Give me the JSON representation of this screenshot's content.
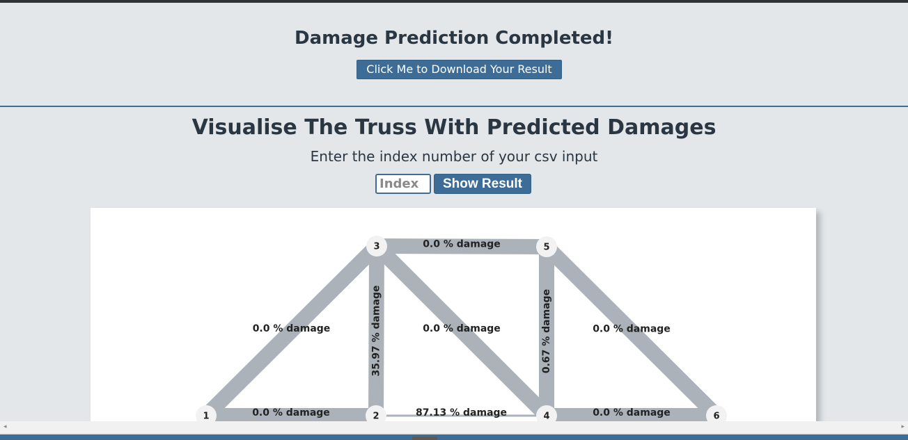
{
  "header": {
    "title": "Damage Prediction Completed!",
    "download_label": "Click Me to Download Your Result"
  },
  "visualise": {
    "title": "Visualise The Truss With Predicted Damages",
    "subtitle": "Enter the index number of your csv input",
    "index_placeholder": "Index",
    "index_value": "",
    "show_label": "Show Result"
  },
  "truss": {
    "nodes": [
      {
        "id": "1",
        "label": "1"
      },
      {
        "id": "2",
        "label": "2"
      },
      {
        "id": "3",
        "label": "3"
      },
      {
        "id": "4",
        "label": "4"
      },
      {
        "id": "5",
        "label": "5"
      },
      {
        "id": "6",
        "label": "6"
      }
    ],
    "members": [
      {
        "from": "3",
        "to": "5",
        "damage_pct": 0.0,
        "label": "0.0 % damage"
      },
      {
        "from": "1",
        "to": "3",
        "damage_pct": 0.0,
        "label": "0.0 % damage"
      },
      {
        "from": "3",
        "to": "2",
        "damage_pct": 35.97,
        "label": "35.97 % damage"
      },
      {
        "from": "3",
        "to": "4",
        "damage_pct": 0.0,
        "label": "0.0 % damage"
      },
      {
        "from": "5",
        "to": "4",
        "damage_pct": 0.67,
        "label": "0.67 % damage"
      },
      {
        "from": "5",
        "to": "6",
        "damage_pct": 0.0,
        "label": "0.0 % damage"
      },
      {
        "from": "1",
        "to": "2",
        "damage_pct": 0.0,
        "label": "0.0 % damage"
      },
      {
        "from": "2",
        "to": "4",
        "damage_pct": 87.13,
        "label": "87.13 % damage"
      },
      {
        "from": "4",
        "to": "6",
        "damage_pct": 0.0,
        "label": "0.0 % damage"
      }
    ],
    "colors": {
      "member": "#abb2b9",
      "node_fill": "#f2f2f2",
      "text": "#222222"
    }
  },
  "scrollbar": {
    "left_arrow": "◂",
    "right_arrow": "▸"
  }
}
